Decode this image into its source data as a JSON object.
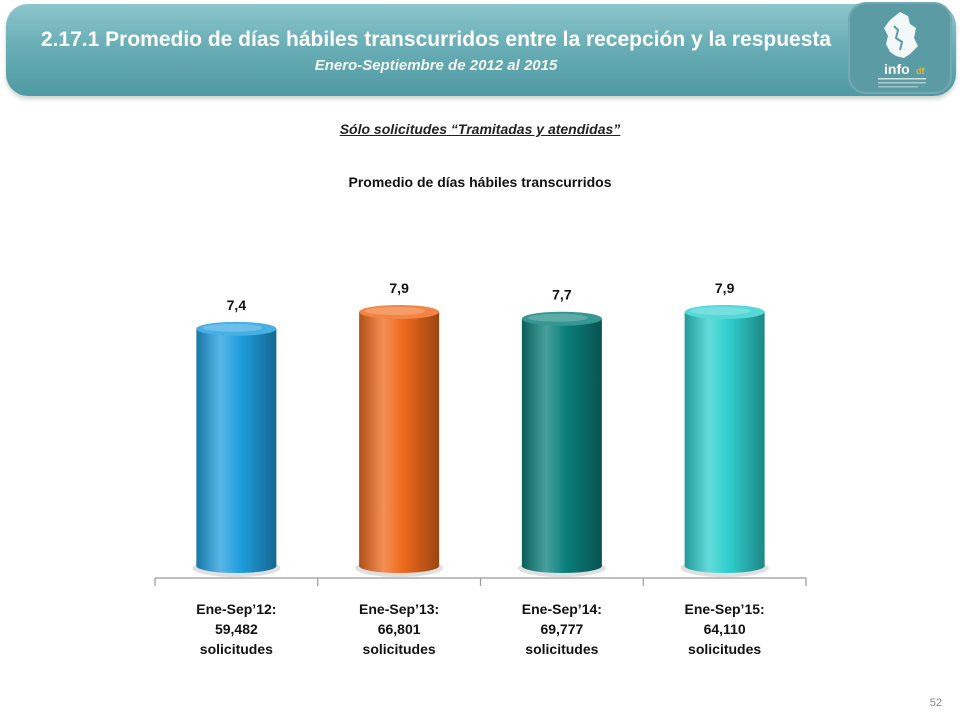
{
  "header": {
    "title": "2.17.1 Promedio de días hábiles transcurridos entre la recepción y la respuesta",
    "subtitle": "Enero-Septiembre de 2012 al 2015"
  },
  "logo": {
    "text": "info",
    "suffix": "df"
  },
  "note": "Sólo solicitudes “Tramitadas y atendidas”",
  "page_number": "52",
  "chart_data": {
    "type": "bar",
    "title": "Promedio de días hábiles transcurridos",
    "xlabel": "",
    "ylabel": "",
    "ylim": [
      0,
      7.9
    ],
    "categories": [
      [
        "Ene-Sep’12:",
        "59,482",
        "solicitudes"
      ],
      [
        "Ene-Sep’13:",
        "66,801",
        "solicitudes"
      ],
      [
        "Ene-Sep’14:",
        "69,777",
        "solicitudes"
      ],
      [
        "Ene-Sep’15:",
        "64,110",
        "solicitudes"
      ]
    ],
    "values": [
      7.4,
      7.9,
      7.7,
      7.9
    ],
    "data_labels": [
      "7,4",
      "7,9",
      "7,7",
      "7,9"
    ],
    "colors": [
      "#1f9ede",
      "#ef6a1c",
      "#0a7f7b",
      "#2fcfcf"
    ],
    "grid": false,
    "legend": "none"
  }
}
